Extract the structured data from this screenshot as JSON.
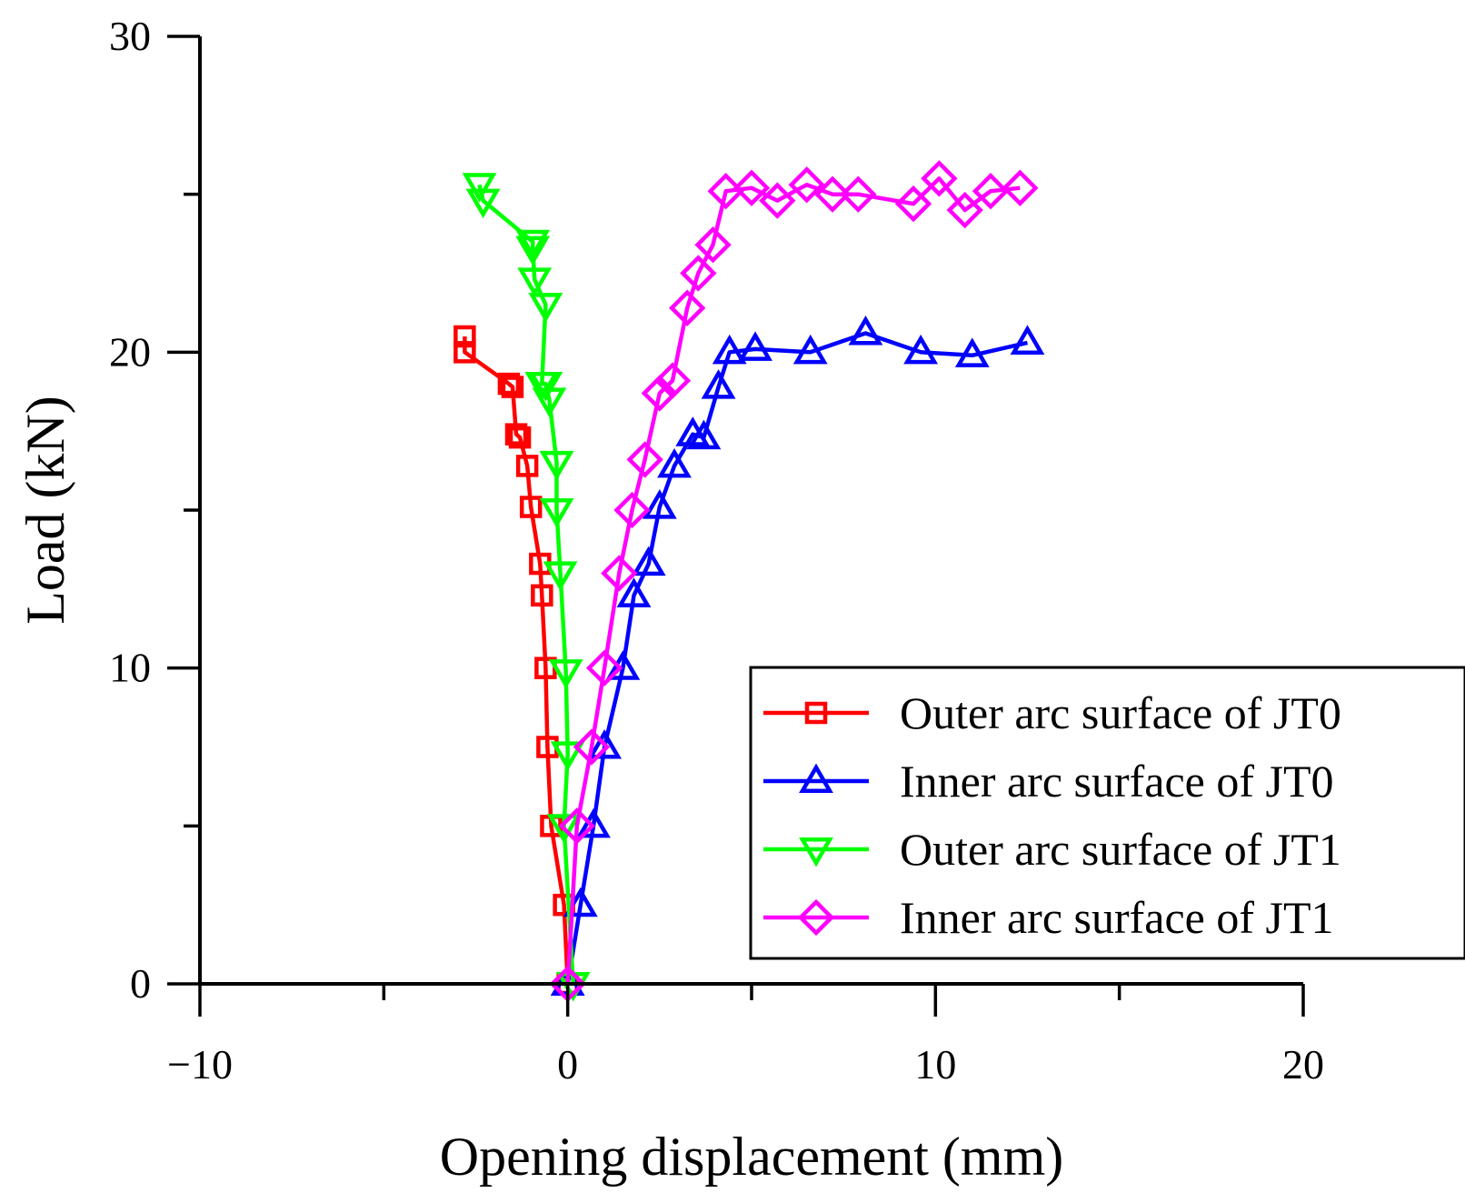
{
  "chart_data": {
    "type": "line",
    "title": "",
    "xlabel": "Opening displacement (mm)",
    "ylabel": "Load (kN)",
    "xlim": [
      -10,
      20
    ],
    "ylim": [
      0,
      30
    ],
    "xticks": [
      -10,
      0,
      10,
      20
    ],
    "xtick_labels": [
      "−10",
      "0",
      "10",
      "20"
    ],
    "yticks": [
      0,
      10,
      20,
      30
    ],
    "ytick_labels": [
      "0",
      "10",
      "20",
      "30"
    ],
    "grid": false,
    "legend_position": "bottom-right",
    "series": [
      {
        "name": "Outer arc surface of JT0",
        "color": "#ff0000",
        "marker": "square",
        "x": [
          0,
          -0.1,
          -0.45,
          -0.55,
          -0.6,
          -0.7,
          -0.75,
          -1.0,
          -1.1,
          -1.3,
          -1.4,
          -1.5,
          -1.6,
          -2.8,
          -2.8
        ],
        "y": [
          0,
          2.5,
          5,
          7.5,
          10,
          12.3,
          13.3,
          15.1,
          16.4,
          17.3,
          17.4,
          18.9,
          19.0,
          20.0,
          20.5
        ]
      },
      {
        "name": "Inner arc surface of JT0",
        "color": "#0000ff",
        "marker": "triangle-up",
        "x": [
          0,
          0.35,
          0.7,
          1.0,
          1.5,
          1.8,
          2.2,
          2.5,
          2.9,
          3.4,
          3.7,
          4.1,
          4.4,
          5.1,
          6.6,
          8.1,
          9.6,
          11.0,
          12.5
        ],
        "y": [
          0,
          2.5,
          5,
          7.5,
          10,
          12.3,
          13.3,
          15.1,
          16.4,
          17.4,
          17.3,
          18.9,
          20.0,
          20.1,
          20.0,
          20.6,
          20.0,
          19.9,
          20.3
        ]
      },
      {
        "name": "Outer arc surface of JT1",
        "color": "#00ff00",
        "marker": "triangle-down",
        "x": [
          0.15,
          -0.1,
          0,
          -0.05,
          -0.2,
          -0.3,
          -0.3,
          -0.5,
          -0.6,
          -0.7,
          -0.6,
          -0.9,
          -0.95,
          -0.95,
          -2.3,
          -2.4
        ],
        "y": [
          0,
          5,
          7.3,
          9.9,
          13,
          15,
          16.5,
          18.5,
          19,
          19,
          21.5,
          22.3,
          23.3,
          23.5,
          24.8,
          25.3
        ]
      },
      {
        "name": "Inner arc surface of JT1",
        "color": "#ff00ff",
        "marker": "diamond",
        "x": [
          0,
          0.25,
          0.65,
          1.0,
          1.4,
          1.75,
          2.1,
          2.5,
          2.85,
          3.25,
          3.55,
          3.95,
          4.3,
          5.0,
          5.7,
          6.5,
          7.2,
          7.9,
          9.4,
          10.1,
          10.8,
          11.5,
          12.3
        ],
        "y": [
          0,
          5,
          7.5,
          10,
          13,
          15,
          16.6,
          18.7,
          19.1,
          21.4,
          22.5,
          23.4,
          25.1,
          25.2,
          24.8,
          25.3,
          25.0,
          25.0,
          24.7,
          25.5,
          24.5,
          25.1,
          25.2
        ]
      }
    ]
  }
}
